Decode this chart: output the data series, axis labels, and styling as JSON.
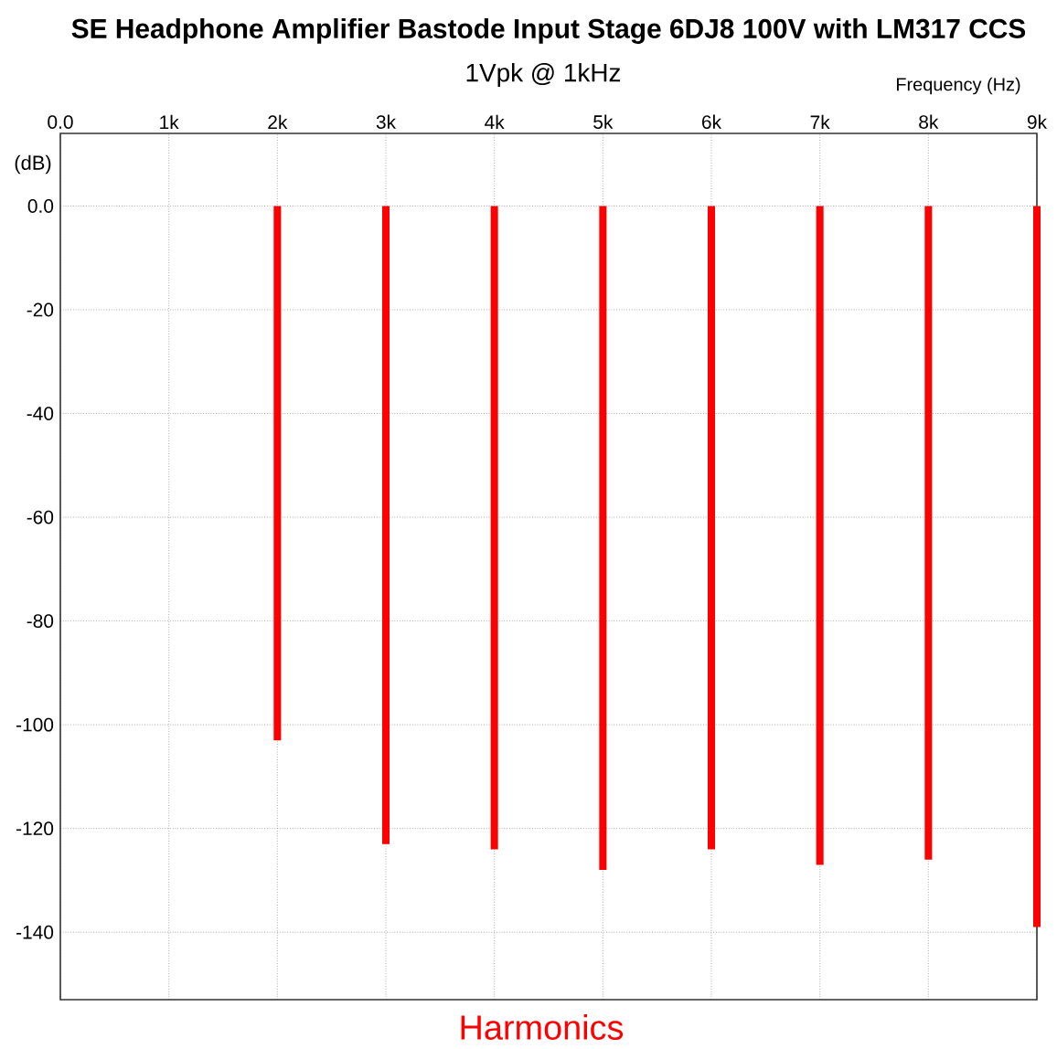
{
  "chart_data": {
    "type": "bar",
    "title": "SE Headphone Amplifier Bastode Input Stage 6DJ8 100V with LM317 CCS",
    "subtitle": "1Vpk @ 1kHz",
    "xlabel": "Frequency (Hz)",
    "ylabel": "(dB)",
    "annotations": [
      "Harmonics"
    ],
    "x": [
      1000,
      2000,
      3000,
      4000,
      5000,
      6000,
      7000,
      8000,
      9000
    ],
    "values": [
      0,
      -103,
      -123,
      -124,
      -128,
      -124,
      -127,
      -126,
      -139
    ],
    "color": "#ff0000",
    "xlim": [
      0,
      9000
    ],
    "xticks": [
      {
        "value": 0,
        "label": "0.0"
      },
      {
        "value": 1000,
        "label": "1k"
      },
      {
        "value": 2000,
        "label": "2k"
      },
      {
        "value": 3000,
        "label": "3k"
      },
      {
        "value": 4000,
        "label": "4k"
      },
      {
        "value": 5000,
        "label": "5k"
      },
      {
        "value": 6000,
        "label": "6k"
      },
      {
        "value": 7000,
        "label": "7k"
      },
      {
        "value": 8000,
        "label": "8k"
      },
      {
        "value": 9000,
        "label": "9k"
      }
    ],
    "ylim": [
      -153,
      14
    ],
    "yticks": [
      {
        "value": 0,
        "label": "0.0"
      },
      -20,
      -40,
      -60,
      -80,
      -100,
      -120,
      -140
    ],
    "grid": true
  }
}
